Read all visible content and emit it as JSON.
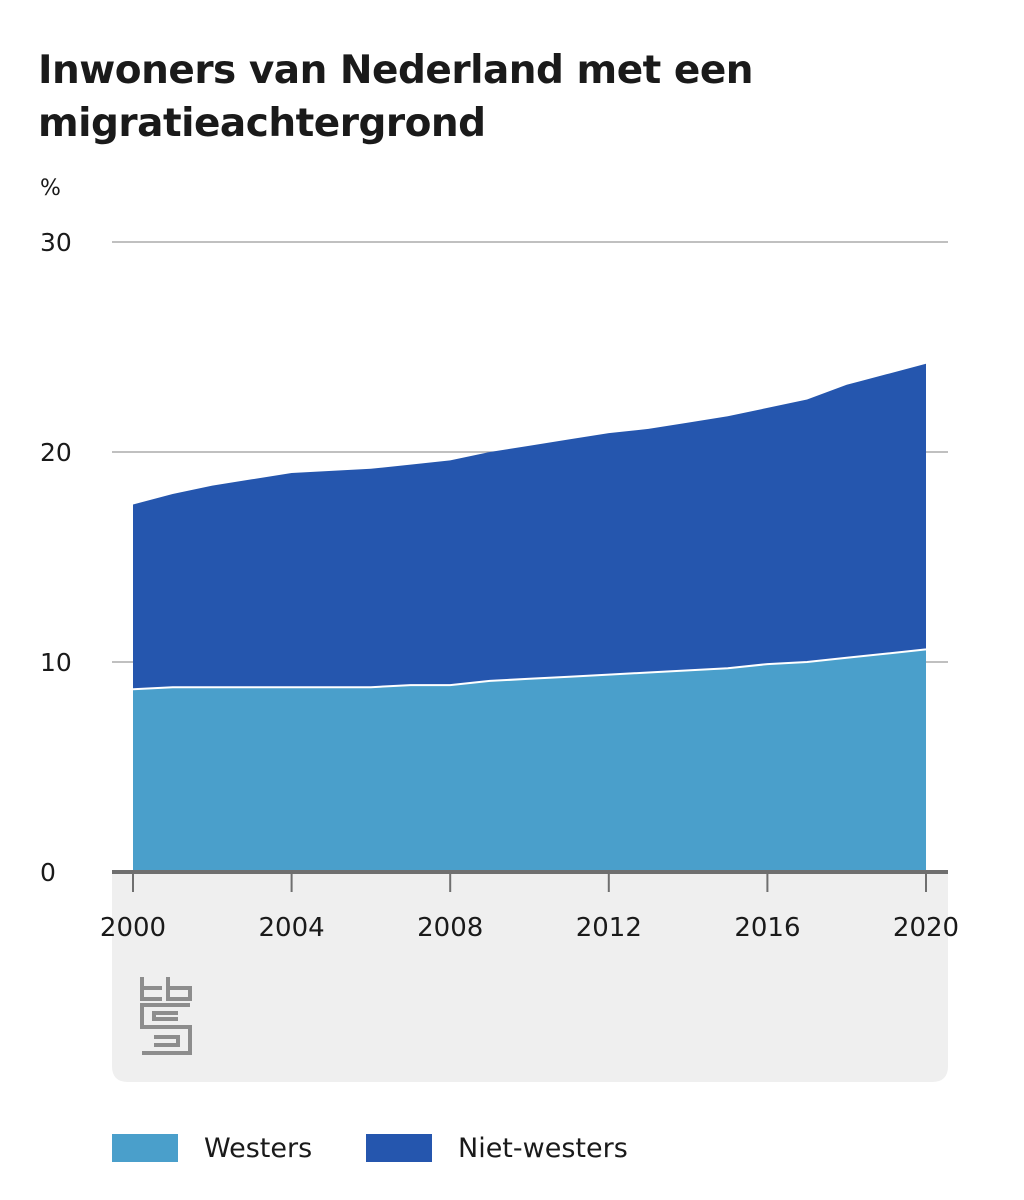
{
  "title": "Inwoners van Nederland met een migratieachtergrond",
  "colors": {
    "westers": "#4a9fcb",
    "niet_westers": "#2556ae",
    "grid": "#9a9a9a",
    "panel": "#efefef",
    "axis": "#6f6f6f"
  },
  "chart_data": {
    "type": "area",
    "stacked": true,
    "unit": "%",
    "x": [
      2000,
      2001,
      2002,
      2003,
      2004,
      2005,
      2006,
      2007,
      2008,
      2009,
      2010,
      2011,
      2012,
      2013,
      2014,
      2015,
      2016,
      2017,
      2018,
      2019,
      2020
    ],
    "series": [
      {
        "name": "Westers",
        "color": "#4a9fcb",
        "values": [
          8.7,
          8.8,
          8.8,
          8.8,
          8.8,
          8.8,
          8.8,
          8.9,
          8.9,
          9.1,
          9.2,
          9.3,
          9.4,
          9.5,
          9.6,
          9.7,
          9.9,
          10.0,
          10.2,
          10.4,
          10.6
        ]
      },
      {
        "name": "Niet-westers",
        "color": "#2556ae",
        "values": [
          8.8,
          9.2,
          9.6,
          9.9,
          10.2,
          10.3,
          10.4,
          10.5,
          10.7,
          10.9,
          11.1,
          11.3,
          11.5,
          11.6,
          11.8,
          12.0,
          12.2,
          12.5,
          13.0,
          13.3,
          13.6
        ]
      }
    ],
    "ylim": [
      0,
      30
    ],
    "yticks": [
      0,
      10,
      20,
      30
    ],
    "xticks": [
      2000,
      2004,
      2008,
      2012,
      2016,
      2020
    ],
    "xlim": [
      2000,
      2020
    ],
    "legend": [
      "Westers",
      "Niet-westers"
    ],
    "legend_position": "bottom-left"
  }
}
